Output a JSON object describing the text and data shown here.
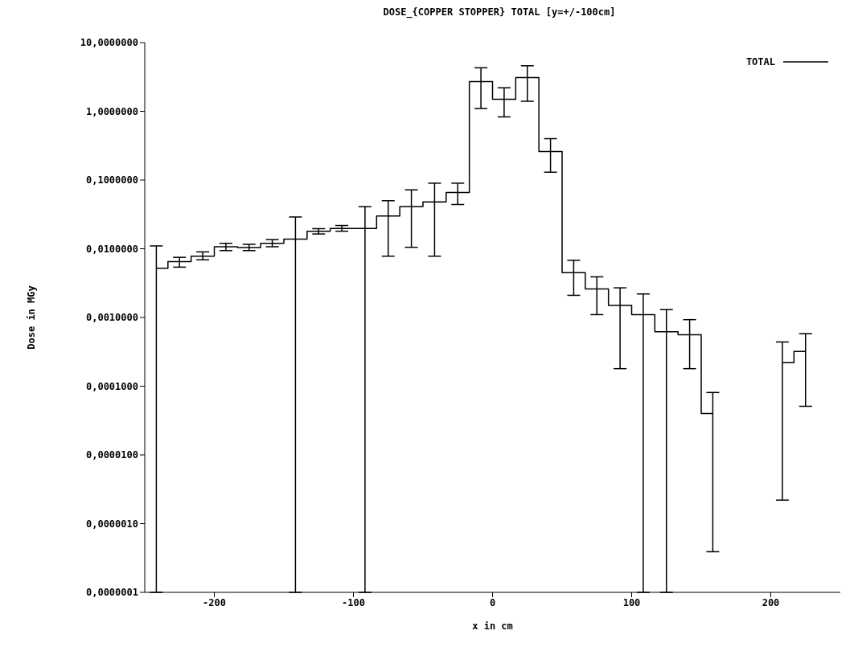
{
  "chart_data": {
    "type": "step",
    "title": "DOSE_{COPPER STOPPER} TOTAL [y=+/-100cm]",
    "xlabel": "x in cm",
    "ylabel": "Dose in MGy",
    "x": [
      -241.67,
      -225,
      -208.33,
      -191.67,
      -175,
      -158.33,
      -141.67,
      -125,
      -108.33,
      -91.67,
      -75,
      -58.33,
      -41.67,
      -25,
      -8.33,
      8.33,
      25,
      41.67,
      58.33,
      75,
      91.67,
      108.33,
      125,
      141.67,
      158.33,
      175,
      191.67,
      208.33,
      225
    ],
    "series": [
      {
        "name": "TOTAL",
        "color": "#000000",
        "values": [
          0.0052,
          0.0065,
          0.0078,
          0.0107,
          0.0104,
          0.012,
          0.0138,
          0.018,
          0.0198,
          0.0198,
          0.03,
          0.041,
          0.048,
          0.066,
          2.7,
          1.5,
          3.1,
          0.26,
          0.0045,
          0.0026,
          0.0015,
          0.0011,
          0.00062,
          0.00056,
          4e-05,
          null,
          null,
          0.00022,
          0.00032
        ],
        "errors": [
          [
            1e-07,
            0.011
          ],
          [
            0.0054,
            0.0075
          ],
          [
            0.0069,
            0.009
          ],
          [
            0.0094,
            0.012
          ],
          [
            0.0094,
            0.0116
          ],
          [
            0.0107,
            0.0136
          ],
          [
            1e-07,
            0.029
          ],
          [
            0.0164,
            0.0196
          ],
          [
            0.018,
            0.0218
          ],
          [
            1e-07,
            0.041
          ],
          [
            0.0078,
            0.05
          ],
          [
            0.0105,
            0.072
          ],
          [
            0.0078,
            0.09
          ],
          [
            0.044,
            0.09
          ],
          [
            1.1,
            4.3
          ],
          [
            0.83,
            2.2
          ],
          [
            1.4,
            4.6
          ],
          [
            0.13,
            0.4
          ],
          [
            0.0021,
            0.0068
          ],
          [
            0.0011,
            0.0039
          ],
          [
            0.00018,
            0.0027
          ],
          [
            1e-07,
            0.0022
          ],
          [
            1e-07,
            0.0013
          ],
          [
            0.00018,
            0.00093
          ],
          [
            3.9e-07,
            8.1e-05
          ],
          null,
          null,
          [
            2.2e-06,
            0.00044
          ],
          [
            5.1e-05,
            0.00058
          ]
        ]
      }
    ],
    "xlim": [
      -250,
      250
    ],
    "xticks": [
      -200,
      -100,
      0,
      100,
      200
    ],
    "ylim": [
      1e-07,
      10
    ],
    "log": true,
    "yticks": [
      {
        "value": 10,
        "label": "10,0000000"
      },
      {
        "value": 1,
        "label": "1,0000000"
      },
      {
        "value": 0.1,
        "label": "0,1000000"
      },
      {
        "value": 0.01,
        "label": "0,0100000"
      },
      {
        "value": 0.001,
        "label": "0,0010000"
      },
      {
        "value": 0.0001,
        "label": "0,0001000"
      },
      {
        "value": 1e-05,
        "label": "0,0000100"
      },
      {
        "value": 1e-06,
        "label": "0,0000010"
      },
      {
        "value": 1e-07,
        "label": "0,0000001"
      }
    ],
    "legend": "top right"
  }
}
